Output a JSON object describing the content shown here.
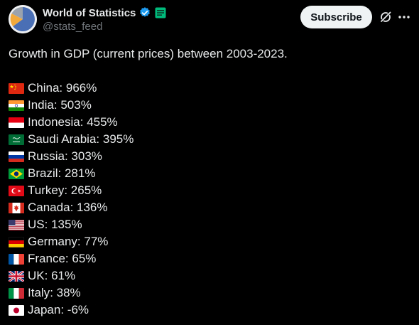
{
  "author": {
    "display_name": "World of Statistics",
    "handle": "@stats_feed"
  },
  "actions": {
    "subscribe_label": "Subscribe"
  },
  "post": {
    "intro": "Growth in GDP (current prices) between 2003-2023.",
    "items": [
      {
        "flag": "china-flag-icon",
        "country": "China",
        "value": "966%"
      },
      {
        "flag": "india-flag-icon",
        "country": "India",
        "value": "503%"
      },
      {
        "flag": "indonesia-flag-icon",
        "country": "Indonesia",
        "value": "455%"
      },
      {
        "flag": "saudi-arabia-flag-icon",
        "country": "Saudi Arabia",
        "value": "395%"
      },
      {
        "flag": "russia-flag-icon",
        "country": "Russia",
        "value": "303%"
      },
      {
        "flag": "brazil-flag-icon",
        "country": "Brazil",
        "value": "281%"
      },
      {
        "flag": "turkey-flag-icon",
        "country": "Turkey",
        "value": "265%"
      },
      {
        "flag": "canada-flag-icon",
        "country": "Canada",
        "value": "136%"
      },
      {
        "flag": "us-flag-icon",
        "country": "US",
        "value": "135%"
      },
      {
        "flag": "germany-flag-icon",
        "country": "Germany",
        "value": "77%"
      },
      {
        "flag": "france-flag-icon",
        "country": "France",
        "value": "65%"
      },
      {
        "flag": "uk-flag-icon",
        "country": "UK",
        "value": "61%"
      },
      {
        "flag": "italy-flag-icon",
        "country": "Italy",
        "value": "38%"
      },
      {
        "flag": "japan-flag-icon",
        "country": "Japan",
        "value": "-6%"
      }
    ]
  },
  "colors": {
    "background": "#000000",
    "text": "#e7e9ea",
    "secondary_text": "#71767b",
    "verified_blue": "#1d9bf0",
    "affiliate_green": "#00ba7c",
    "subscribe_bg": "#eff3f4"
  }
}
